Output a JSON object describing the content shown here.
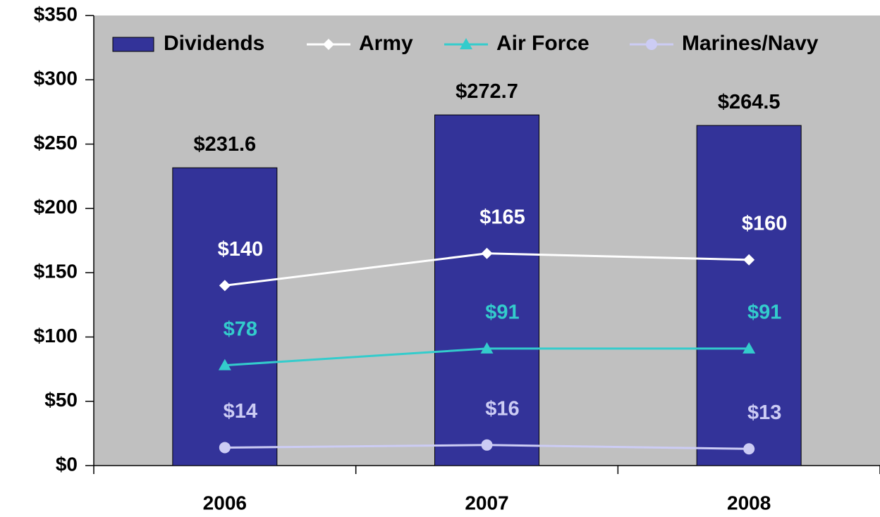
{
  "chart_data": {
    "type": "bar",
    "categories": [
      "2006",
      "2007",
      "2008"
    ],
    "series": [
      {
        "name": "Dividends",
        "type": "bar",
        "color": "#333399",
        "values": [
          231.6,
          272.7,
          264.5
        ],
        "value_labels": [
          "$231.6",
          "$272.7",
          "$264.5"
        ],
        "label_color": "#000000"
      },
      {
        "name": "Army",
        "type": "line",
        "marker": "diamond",
        "color": "#ffffff",
        "values": [
          140,
          165,
          160
        ],
        "value_labels": [
          "$140",
          "$165",
          "$160"
        ],
        "label_color": "#ffffff"
      },
      {
        "name": "Air Force",
        "type": "line",
        "marker": "triangle",
        "color": "#33cccc",
        "values": [
          78,
          91,
          91
        ],
        "value_labels": [
          "$78",
          "$91",
          "$91"
        ],
        "label_color": "#33cccc"
      },
      {
        "name": "Marines/Navy",
        "type": "line",
        "marker": "circle",
        "color": "#ccccf4",
        "values": [
          14,
          16,
          13
        ],
        "value_labels": [
          "$14",
          "$16",
          "$13"
        ],
        "label_color": "#ccccf4"
      }
    ],
    "ylim": [
      0,
      350
    ],
    "yticks": [
      {
        "value": 0,
        "label": "$0"
      },
      {
        "value": 50,
        "label": "$50"
      },
      {
        "value": 100,
        "label": "$100"
      },
      {
        "value": 150,
        "label": "$150"
      },
      {
        "value": 200,
        "label": "$200"
      },
      {
        "value": 250,
        "label": "$250"
      },
      {
        "value": 300,
        "label": "$300"
      },
      {
        "value": 350,
        "label": "$350"
      }
    ],
    "legend": "top",
    "background": "#c0c0c0"
  }
}
